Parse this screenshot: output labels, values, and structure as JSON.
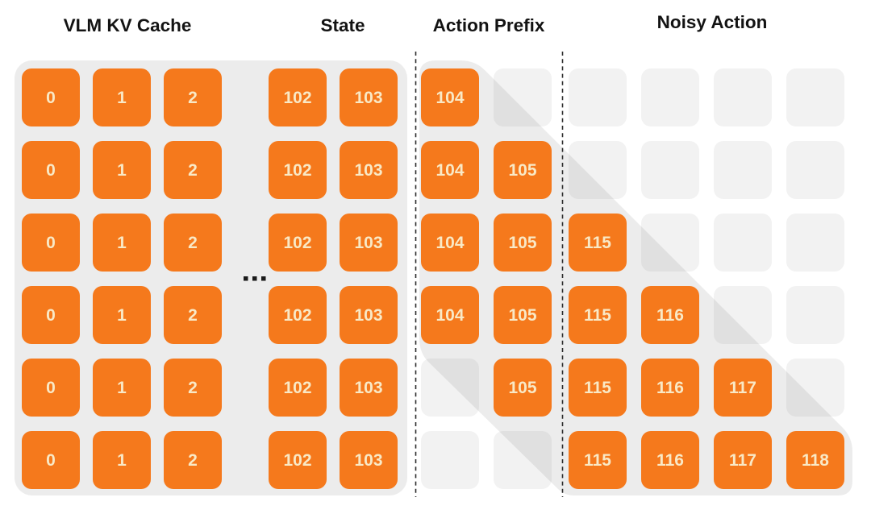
{
  "figure": {
    "section_labels": [
      "VLM KV Cache",
      "State",
      "Action Prefix",
      "Noisy Action"
    ],
    "ellipsis": "...",
    "rows": [
      [
        "0",
        "1",
        "2",
        "102",
        "103",
        "104",
        "",
        "",
        "",
        "",
        ""
      ],
      [
        "0",
        "1",
        "2",
        "102",
        "103",
        "104",
        "105",
        "",
        "",
        "",
        ""
      ],
      [
        "0",
        "1",
        "2",
        "102",
        "103",
        "104",
        "105",
        "115",
        "",
        "",
        ""
      ],
      [
        "0",
        "1",
        "2",
        "102",
        "103",
        "104",
        "105",
        "115",
        "116",
        "",
        ""
      ],
      [
        "0",
        "1",
        "2",
        "102",
        "103",
        "",
        "105",
        "115",
        "116",
        "117",
        ""
      ],
      [
        "0",
        "1",
        "2",
        "102",
        "103",
        "",
        "",
        "115",
        "116",
        "117",
        "118"
      ]
    ],
    "colors": {
      "block": "#F5791C",
      "block_text": "#F9E9C6",
      "panel": "#ECECEC",
      "empty_cell": "rgba(0,0,0,0.05)",
      "divider": "#2B2B2B",
      "label_text": "#131313",
      "background": "#FFFFFF"
    }
  }
}
